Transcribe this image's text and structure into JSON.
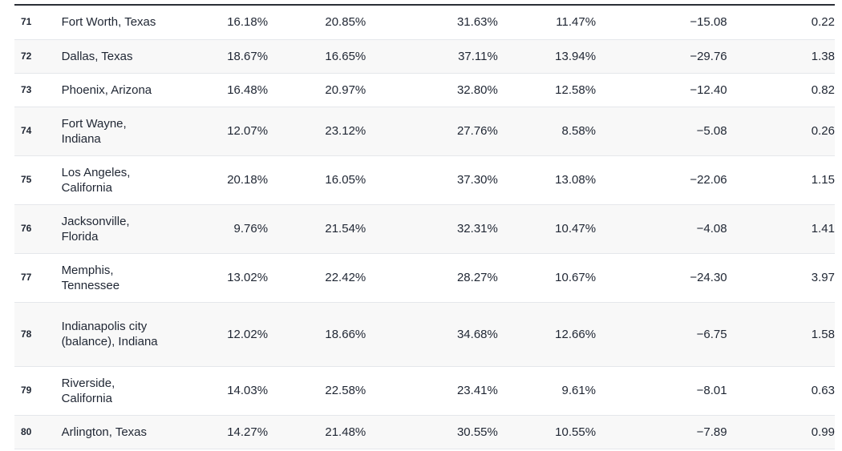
{
  "rows": [
    {
      "rank": "71",
      "city": "Fort Worth, Texas",
      "c1": "16.18%",
      "c2": "20.85%",
      "c3": "31.63%",
      "c4": "11.47%",
      "c5": "−15.08",
      "c6": "0.22"
    },
    {
      "rank": "72",
      "city": "Dallas, Texas",
      "c1": "18.67%",
      "c2": "16.65%",
      "c3": "37.11%",
      "c4": "13.94%",
      "c5": "−29.76",
      "c6": "1.38"
    },
    {
      "rank": "73",
      "city": "Phoenix, Arizona",
      "c1": "16.48%",
      "c2": "20.97%",
      "c3": "32.80%",
      "c4": "12.58%",
      "c5": "−12.40",
      "c6": "0.82"
    },
    {
      "rank": "74",
      "city": "Fort Wayne, Indiana",
      "c1": "12.07%",
      "c2": "23.12%",
      "c3": "27.76%",
      "c4": "8.58%",
      "c5": "−5.08",
      "c6": "0.26"
    },
    {
      "rank": "75",
      "city": "Los Angeles, California",
      "c1": "20.18%",
      "c2": "16.05%",
      "c3": "37.30%",
      "c4": "13.08%",
      "c5": "−22.06",
      "c6": "1.15"
    },
    {
      "rank": "76",
      "city": "Jacksonville, Florida",
      "c1": "9.76%",
      "c2": "21.54%",
      "c3": "32.31%",
      "c4": "10.47%",
      "c5": "−4.08",
      "c6": "1.41"
    },
    {
      "rank": "77",
      "city": "Memphis, Tennessee",
      "c1": "13.02%",
      "c2": "22.42%",
      "c3": "28.27%",
      "c4": "10.67%",
      "c5": "−24.30",
      "c6": "3.97"
    },
    {
      "rank": "78",
      "city": "Indianapolis city (balance), Indiana",
      "c1": "12.02%",
      "c2": "18.66%",
      "c3": "34.68%",
      "c4": "12.66%",
      "c5": "−6.75",
      "c6": "1.58"
    },
    {
      "rank": "79",
      "city": "Riverside, California",
      "c1": "14.03%",
      "c2": "22.58%",
      "c3": "23.41%",
      "c4": "9.61%",
      "c5": "−8.01",
      "c6": "0.63"
    },
    {
      "rank": "80",
      "city": "Arlington, Texas",
      "c1": "14.27%",
      "c2": "21.48%",
      "c3": "30.55%",
      "c4": "10.55%",
      "c5": "−7.89",
      "c6": "0.99"
    }
  ]
}
